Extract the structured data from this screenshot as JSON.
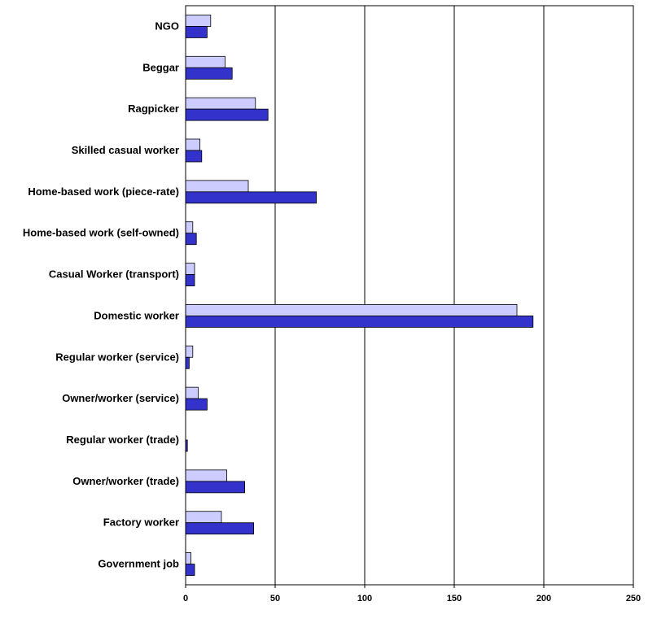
{
  "chart_data": {
    "type": "bar",
    "orientation": "horizontal",
    "categories": [
      "NGO",
      "Beggar",
      "Ragpicker",
      "Skilled casual worker",
      "Home-based work (piece-rate)",
      "Home-based work (self-owned)",
      "Casual Worker (transport)",
      "Domestic worker",
      "Regular worker (service)",
      "Owner/worker (service)",
      "Regular worker (trade)",
      "Owner/worker (trade)",
      "Factory worker",
      "Government job"
    ],
    "series": [
      {
        "values": [
          14,
          22,
          39,
          8,
          35,
          4,
          5,
          185,
          4,
          7,
          0,
          23,
          20,
          3
        ]
      },
      {
        "values": [
          12,
          26,
          46,
          9,
          73,
          6,
          5,
          194,
          2,
          12,
          1,
          33,
          38,
          5
        ]
      }
    ],
    "title": "",
    "xlabel": "",
    "ylabel": "",
    "xlim": [
      0,
      250
    ],
    "xticks": [
      "0",
      "50",
      "100",
      "150",
      "200",
      "250"
    ],
    "grid": "vertical",
    "legend": "none",
    "colors": {
      "series_light": "#ccccff",
      "series_dark": "#3333cc",
      "bar_stroke": "#000000",
      "grid": "#000000",
      "plot_border": "#000000"
    }
  }
}
